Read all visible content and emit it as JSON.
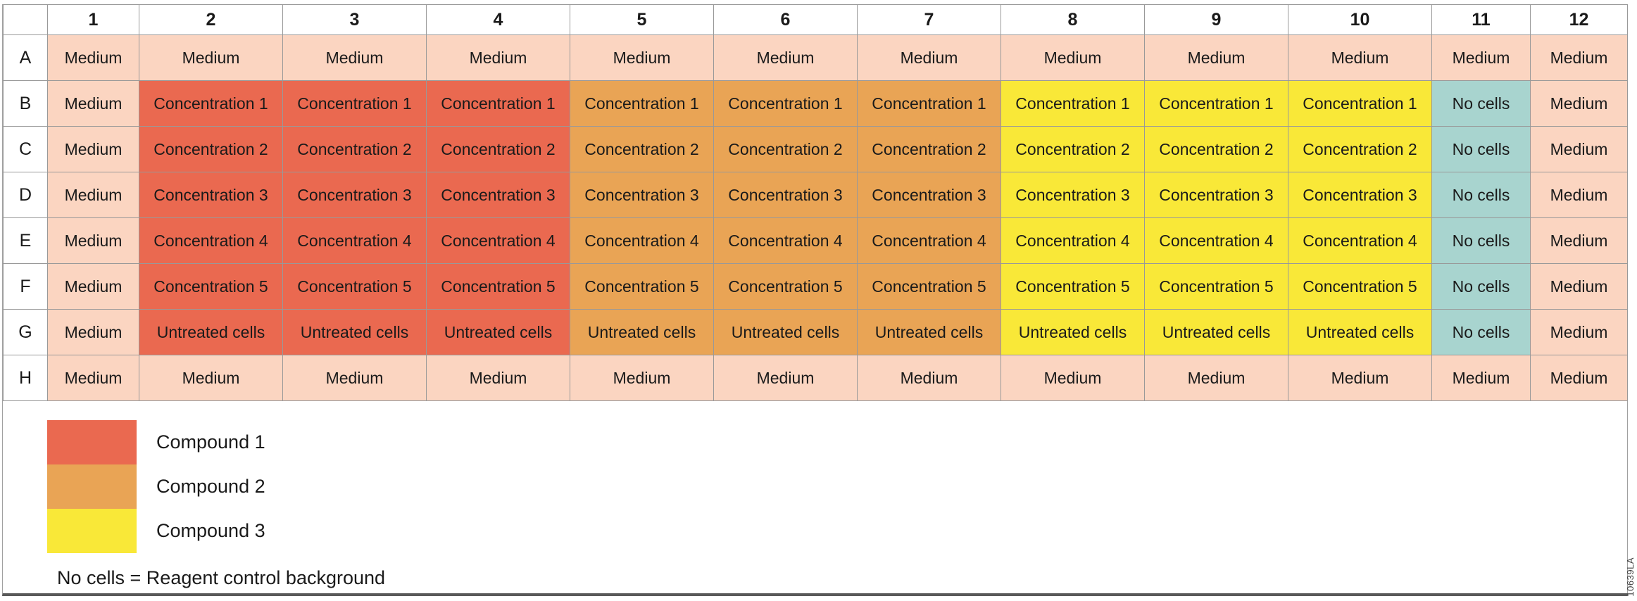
{
  "colors": {
    "medium": "#fbd5c1",
    "compound1": "#ea6950",
    "compound2": "#e9a455",
    "compound3": "#f9e838",
    "no_cells": "#a8d4cf",
    "grid_line": "#999999",
    "bottom_bar": "#595959"
  },
  "plate": {
    "column_headers": [
      "1",
      "2",
      "3",
      "4",
      "5",
      "6",
      "7",
      "8",
      "9",
      "10",
      "11",
      "12"
    ],
    "row_headers": [
      "A",
      "B",
      "C",
      "D",
      "E",
      "F",
      "G",
      "H"
    ],
    "rows": [
      {
        "header": "A",
        "cells": [
          {
            "text": "Medium",
            "fill": "medium"
          },
          {
            "text": "Medium",
            "fill": "medium"
          },
          {
            "text": "Medium",
            "fill": "medium"
          },
          {
            "text": "Medium",
            "fill": "medium"
          },
          {
            "text": "Medium",
            "fill": "medium"
          },
          {
            "text": "Medium",
            "fill": "medium"
          },
          {
            "text": "Medium",
            "fill": "medium"
          },
          {
            "text": "Medium",
            "fill": "medium"
          },
          {
            "text": "Medium",
            "fill": "medium"
          },
          {
            "text": "Medium",
            "fill": "medium"
          },
          {
            "text": "Medium",
            "fill": "medium"
          },
          {
            "text": "Medium",
            "fill": "medium"
          }
        ]
      },
      {
        "header": "B",
        "cells": [
          {
            "text": "Medium",
            "fill": "medium"
          },
          {
            "text": "Concentration 1",
            "fill": "compound1"
          },
          {
            "text": "Concentration 1",
            "fill": "compound1"
          },
          {
            "text": "Concentration 1",
            "fill": "compound1"
          },
          {
            "text": "Concentration 1",
            "fill": "compound2"
          },
          {
            "text": "Concentration 1",
            "fill": "compound2"
          },
          {
            "text": "Concentration 1",
            "fill": "compound2"
          },
          {
            "text": "Concentration 1",
            "fill": "compound3"
          },
          {
            "text": "Concentration 1",
            "fill": "compound3"
          },
          {
            "text": "Concentration 1",
            "fill": "compound3"
          },
          {
            "text": "No cells",
            "fill": "no_cells"
          },
          {
            "text": "Medium",
            "fill": "medium"
          }
        ]
      },
      {
        "header": "C",
        "cells": [
          {
            "text": "Medium",
            "fill": "medium"
          },
          {
            "text": "Concentration 2",
            "fill": "compound1"
          },
          {
            "text": "Concentration 2",
            "fill": "compound1"
          },
          {
            "text": "Concentration 2",
            "fill": "compound1"
          },
          {
            "text": "Concentration 2",
            "fill": "compound2"
          },
          {
            "text": "Concentration 2",
            "fill": "compound2"
          },
          {
            "text": "Concentration 2",
            "fill": "compound2"
          },
          {
            "text": "Concentration 2",
            "fill": "compound3"
          },
          {
            "text": "Concentration 2",
            "fill": "compound3"
          },
          {
            "text": "Concentration 2",
            "fill": "compound3"
          },
          {
            "text": "No cells",
            "fill": "no_cells"
          },
          {
            "text": "Medium",
            "fill": "medium"
          }
        ]
      },
      {
        "header": "D",
        "cells": [
          {
            "text": "Medium",
            "fill": "medium"
          },
          {
            "text": "Concentration 3",
            "fill": "compound1"
          },
          {
            "text": "Concentration 3",
            "fill": "compound1"
          },
          {
            "text": "Concentration 3",
            "fill": "compound1"
          },
          {
            "text": "Concentration 3",
            "fill": "compound2"
          },
          {
            "text": "Concentration 3",
            "fill": "compound2"
          },
          {
            "text": "Concentration 3",
            "fill": "compound2"
          },
          {
            "text": "Concentration 3",
            "fill": "compound3"
          },
          {
            "text": "Concentration 3",
            "fill": "compound3"
          },
          {
            "text": "Concentration 3",
            "fill": "compound3"
          },
          {
            "text": "No cells",
            "fill": "no_cells"
          },
          {
            "text": "Medium",
            "fill": "medium"
          }
        ]
      },
      {
        "header": "E",
        "cells": [
          {
            "text": "Medium",
            "fill": "medium"
          },
          {
            "text": "Concentration 4",
            "fill": "compound1"
          },
          {
            "text": "Concentration 4",
            "fill": "compound1"
          },
          {
            "text": "Concentration 4",
            "fill": "compound1"
          },
          {
            "text": "Concentration 4",
            "fill": "compound2"
          },
          {
            "text": "Concentration 4",
            "fill": "compound2"
          },
          {
            "text": "Concentration 4",
            "fill": "compound2"
          },
          {
            "text": "Concentration 4",
            "fill": "compound3"
          },
          {
            "text": "Concentration 4",
            "fill": "compound3"
          },
          {
            "text": "Concentration 4",
            "fill": "compound3"
          },
          {
            "text": "No cells",
            "fill": "no_cells"
          },
          {
            "text": "Medium",
            "fill": "medium"
          }
        ]
      },
      {
        "header": "F",
        "cells": [
          {
            "text": "Medium",
            "fill": "medium"
          },
          {
            "text": "Concentration 5",
            "fill": "compound1"
          },
          {
            "text": "Concentration 5",
            "fill": "compound1"
          },
          {
            "text": "Concentration 5",
            "fill": "compound1"
          },
          {
            "text": "Concentration 5",
            "fill": "compound2"
          },
          {
            "text": "Concentration 5",
            "fill": "compound2"
          },
          {
            "text": "Concentration 5",
            "fill": "compound2"
          },
          {
            "text": "Concentration 5",
            "fill": "compound3"
          },
          {
            "text": "Concentration 5",
            "fill": "compound3"
          },
          {
            "text": "Concentration 5",
            "fill": "compound3"
          },
          {
            "text": "No cells",
            "fill": "no_cells"
          },
          {
            "text": "Medium",
            "fill": "medium"
          }
        ]
      },
      {
        "header": "G",
        "cells": [
          {
            "text": "Medium",
            "fill": "medium"
          },
          {
            "text": "Untreated cells",
            "fill": "compound1"
          },
          {
            "text": "Untreated cells",
            "fill": "compound1"
          },
          {
            "text": "Untreated cells",
            "fill": "compound1"
          },
          {
            "text": "Untreated cells",
            "fill": "compound2"
          },
          {
            "text": "Untreated cells",
            "fill": "compound2"
          },
          {
            "text": "Untreated cells",
            "fill": "compound2"
          },
          {
            "text": "Untreated cells",
            "fill": "compound3"
          },
          {
            "text": "Untreated cells",
            "fill": "compound3"
          },
          {
            "text": "Untreated cells",
            "fill": "compound3"
          },
          {
            "text": "No cells",
            "fill": "no_cells"
          },
          {
            "text": "Medium",
            "fill": "medium"
          }
        ]
      },
      {
        "header": "H",
        "cells": [
          {
            "text": "Medium",
            "fill": "medium"
          },
          {
            "text": "Medium",
            "fill": "medium"
          },
          {
            "text": "Medium",
            "fill": "medium"
          },
          {
            "text": "Medium",
            "fill": "medium"
          },
          {
            "text": "Medium",
            "fill": "medium"
          },
          {
            "text": "Medium",
            "fill": "medium"
          },
          {
            "text": "Medium",
            "fill": "medium"
          },
          {
            "text": "Medium",
            "fill": "medium"
          },
          {
            "text": "Medium",
            "fill": "medium"
          },
          {
            "text": "Medium",
            "fill": "medium"
          },
          {
            "text": "Medium",
            "fill": "medium"
          },
          {
            "text": "Medium",
            "fill": "medium"
          }
        ]
      }
    ]
  },
  "legend": {
    "items": [
      {
        "label": "Compound 1",
        "fill": "compound1"
      },
      {
        "label": "Compound 2",
        "fill": "compound2"
      },
      {
        "label": "Compound 3",
        "fill": "compound3"
      }
    ],
    "note": "No cells = Reagent control background"
  },
  "watermark": "10639LA"
}
